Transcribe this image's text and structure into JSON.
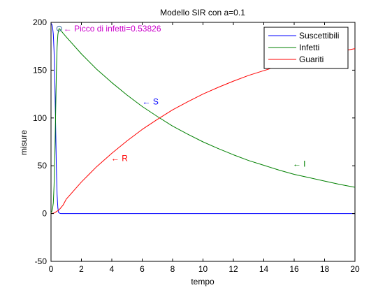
{
  "colors": {
    "background": "#ffffff",
    "axes": "#000000",
    "suscettibili": "#0000ff",
    "infetti": "#008000",
    "guariti": "#ff0000",
    "peak_annotation": "#cc00cc"
  },
  "chart_data": {
    "type": "line",
    "title": "Modello SIR con a=0.1",
    "xlabel": "tempo",
    "ylabel": "misure",
    "xlim": [
      0,
      20
    ],
    "ylim": [
      -50,
      200
    ],
    "xticks": [
      0,
      2,
      4,
      6,
      8,
      10,
      12,
      14,
      16,
      18,
      20
    ],
    "yticks": [
      -50,
      0,
      50,
      100,
      150,
      200
    ],
    "grid": false,
    "legend_position": "top-right",
    "series": [
      {
        "name": "Suscettibili",
        "color": "#0000ff",
        "x": [
          0,
          0.05,
          0.1,
          0.15,
          0.2,
          0.25,
          0.3,
          0.35,
          0.4,
          0.45,
          0.5,
          0.6,
          0.7,
          0.8,
          1,
          2,
          4,
          6,
          8,
          10,
          12,
          14,
          16,
          18,
          20
        ],
        "y": [
          199,
          198,
          195,
          188,
          170,
          140,
          95,
          50,
          20,
          6,
          1,
          0.1,
          0,
          0,
          0,
          0,
          0,
          0,
          0,
          0,
          0,
          0,
          0,
          0,
          0
        ]
      },
      {
        "name": "Infetti",
        "color": "#008000",
        "x": [
          0,
          0.05,
          0.1,
          0.15,
          0.2,
          0.25,
          0.3,
          0.35,
          0.4,
          0.45,
          0.5,
          0.54,
          0.6,
          0.8,
          1,
          2,
          3,
          4,
          5,
          6,
          7,
          8,
          9,
          10,
          11,
          12,
          13,
          14,
          15,
          16,
          17,
          18,
          19,
          20
        ],
        "y": [
          1,
          2,
          5,
          11,
          29,
          58,
          102,
          146,
          174,
          187,
          192,
          193.5,
          192.5,
          188.5,
          184.8,
          167,
          151,
          137,
          124,
          112,
          101.5,
          91.5,
          83,
          75,
          68,
          61.5,
          55.5,
          50.5,
          45.5,
          41,
          37.5,
          34,
          30.5,
          27.5
        ]
      },
      {
        "name": "Guariti",
        "color": "#ff0000",
        "x": [
          0,
          0.2,
          0.4,
          0.54,
          0.8,
          1,
          2,
          3,
          4,
          5,
          6,
          7,
          8,
          9,
          10,
          11,
          12,
          13,
          14,
          15,
          16,
          17,
          18,
          19,
          20
        ],
        "y": [
          0,
          0.5,
          2.5,
          4,
          9,
          15,
          33,
          49,
          63,
          76,
          88,
          98.5,
          108.5,
          117,
          125,
          132,
          138.5,
          144.5,
          149.5,
          154.5,
          159,
          162.5,
          166,
          169.5,
          172.5
        ]
      }
    ],
    "annotations": [
      {
        "text": "← Picco di infetti=0.53826",
        "x": 0.54,
        "y": 193.5,
        "color": "#cc00cc",
        "marker": "circle"
      },
      {
        "text": "← S",
        "x": 6.0,
        "y": 117,
        "color": "#0000ff"
      },
      {
        "text": "← R",
        "x": 3.95,
        "y": 58,
        "color": "#ff0000"
      },
      {
        "text": "← I",
        "x": 15.9,
        "y": 52,
        "color": "#008000"
      }
    ]
  }
}
